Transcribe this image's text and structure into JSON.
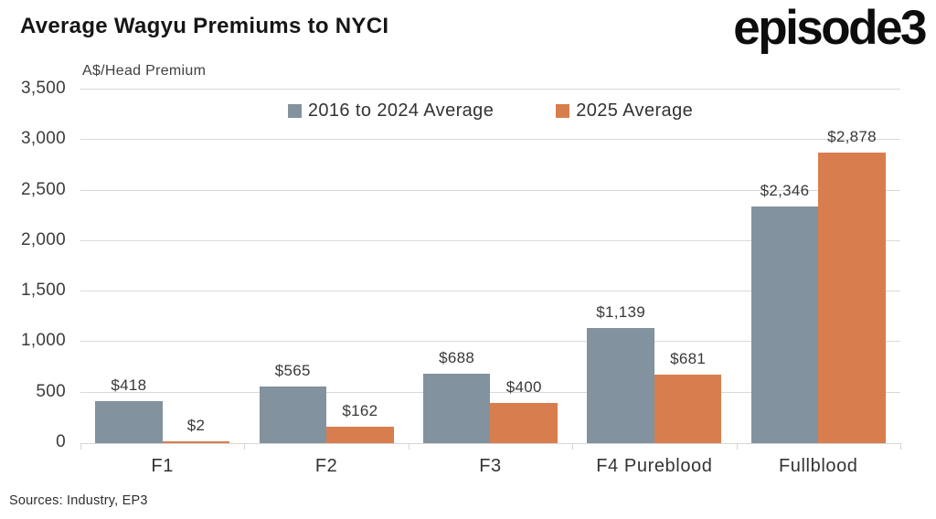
{
  "header": {
    "title": "Average Wagyu Premiums to NYCI",
    "logo": "episode3"
  },
  "chart_data": {
    "type": "bar",
    "title": "Average Wagyu Premiums to NYCI",
    "axis_title": "A$/Head Premium",
    "categories": [
      "F1",
      "F2",
      "F3",
      "F4 Pureblood",
      "Fullblood"
    ],
    "series": [
      {
        "name": "2016 to 2024 Average",
        "color": "#82929E",
        "values": [
          418,
          565,
          688,
          1139,
          2346
        ],
        "labels": [
          "$418",
          "$565",
          "$688",
          "$1,139",
          "$2,346"
        ]
      },
      {
        "name": "2025 Average",
        "color": "#D87E4E",
        "values": [
          2,
          162,
          400,
          681,
          2878
        ],
        "labels": [
          "$2",
          "$162",
          "$400",
          "$681",
          "$2,878"
        ]
      }
    ],
    "ylim": [
      0,
      3500
    ],
    "ytick_step": 500,
    "yticks": [
      "0",
      "500",
      "1,000",
      "1,500",
      "2,000",
      "2,500",
      "3,000",
      "3,500"
    ],
    "grid": true,
    "legend_position": "top-center"
  },
  "footer": {
    "sources": "Sources: Industry, EP3"
  }
}
